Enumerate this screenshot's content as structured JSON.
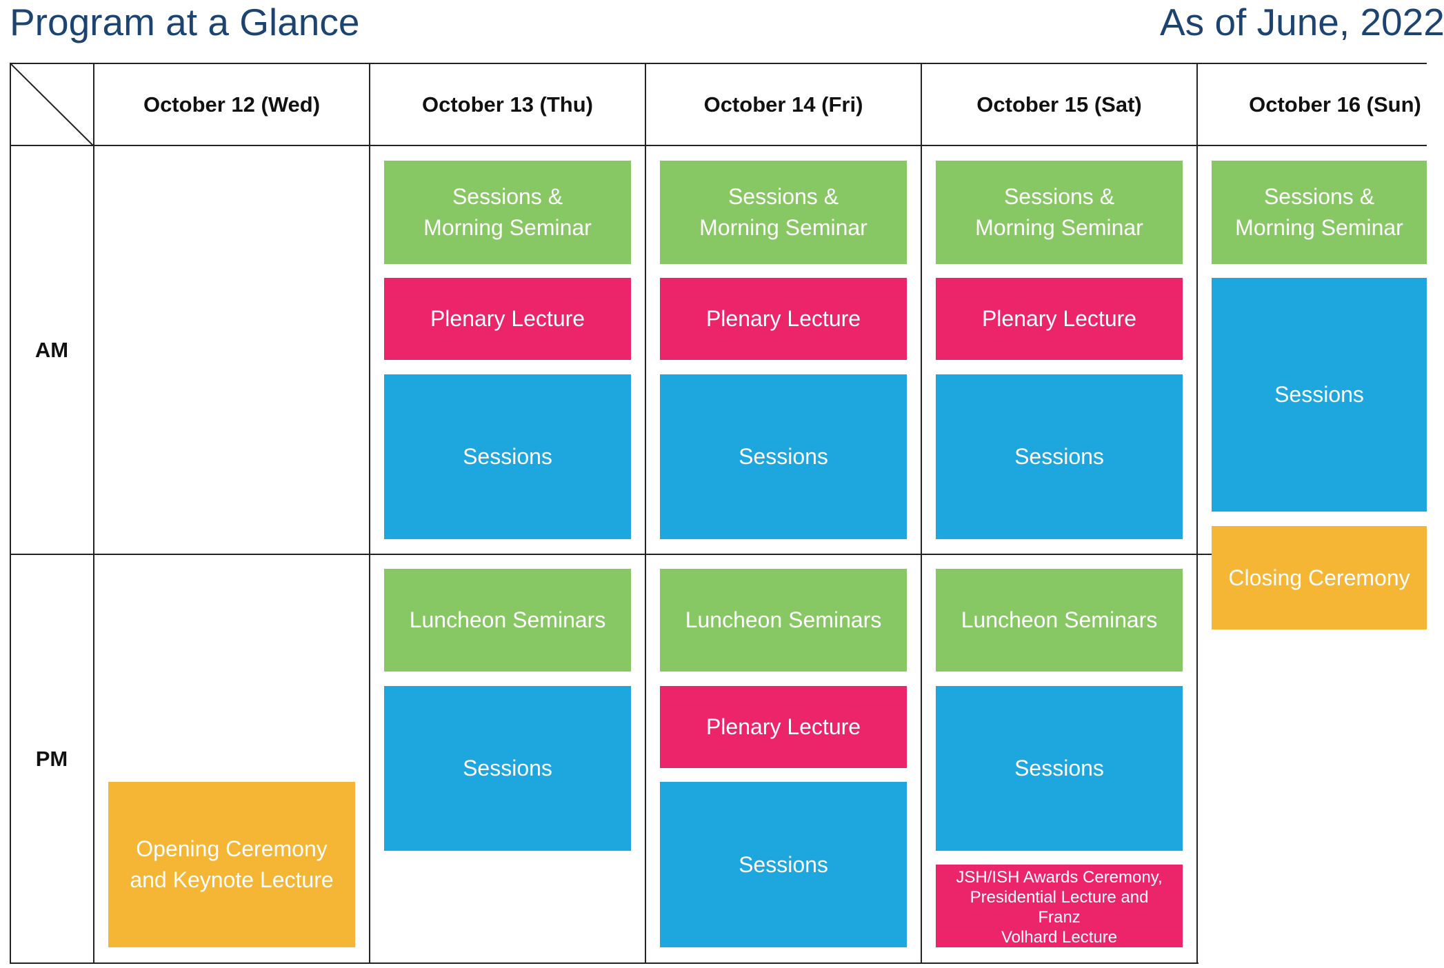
{
  "header": {
    "title": "Program at a Glance",
    "as_of": "As of June, 2022"
  },
  "periods": {
    "am": "AM",
    "pm": "PM"
  },
  "days": [
    {
      "label": "October 12 (Wed)"
    },
    {
      "label": "October 13 (Thu)"
    },
    {
      "label": "October 14 (Fri)"
    },
    {
      "label": "October 15 (Sat)"
    },
    {
      "label": "October 16 (Sun)"
    }
  ],
  "colors": {
    "seminar": "#88c864",
    "plenary": "#ec246a",
    "sessions": "#1ea6de",
    "ceremony": "#f5b535",
    "title": "#1d4370"
  },
  "events": {
    "wed": {
      "opening": "Opening Ceremony\nand Keynote Lecture"
    },
    "thu": {
      "morning": "Sessions &\nMorning Seminar",
      "plenary": "Plenary Lecture",
      "sessions_am": "Sessions",
      "luncheon": "Luncheon Seminars",
      "sessions_pm": "Sessions"
    },
    "fri": {
      "morning": "Sessions &\nMorning Seminar",
      "plenary_am": "Plenary Lecture",
      "sessions_am": "Sessions",
      "luncheon": "Luncheon Seminars",
      "plenary_pm": "Plenary Lecture",
      "sessions_pm": "Sessions"
    },
    "sat": {
      "morning": "Sessions &\nMorning Seminar",
      "plenary": "Plenary Lecture",
      "sessions_am": "Sessions",
      "luncheon": "Luncheon Seminars",
      "sessions_pm": "Sessions",
      "awards": "JSH/ISH Awards Ceremony,\nPresidential Lecture and\nFranz\nVolhard Lecture"
    },
    "sun": {
      "morning": "Sessions &\nMorning Seminar",
      "sessions": "Sessions",
      "closing": "Closing Ceremony"
    }
  }
}
